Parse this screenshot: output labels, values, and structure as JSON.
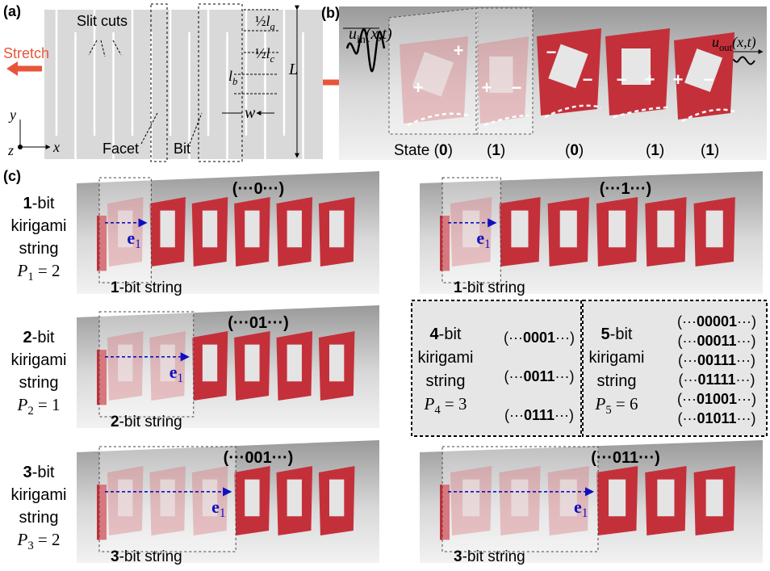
{
  "panel_a": {
    "label": "(a)",
    "slit_cuts": "Slit cuts",
    "stretch": "Stretch",
    "facet": "Facet",
    "bit": "Bit",
    "half_la": [
      "½",
      "l",
      "a"
    ],
    "half_lc": [
      "½",
      "l",
      "c"
    ],
    "lb": [
      "l",
      "b"
    ],
    "L": "L",
    "w": "w",
    "axis_y": "y",
    "axis_z": "z",
    "axis_x": "x"
  },
  "panel_b": {
    "label": "(b)",
    "u_in": [
      "u",
      "in",
      "(x,t)"
    ],
    "u_out": [
      "u",
      "out",
      "(x,t)"
    ],
    "states": [
      [
        "State (",
        "0",
        ")"
      ],
      [
        "(",
        "1",
        ")"
      ],
      [
        "(",
        "0",
        ")"
      ],
      [
        "(",
        "1",
        ")"
      ],
      [
        "(",
        "1",
        ")"
      ]
    ],
    "signs": [
      "+",
      "+",
      "+",
      "−",
      "−",
      "−",
      "−",
      "+",
      "+",
      "−"
    ]
  },
  "panel_c": {
    "label": "(c)",
    "rows": [
      {
        "title": [
          "1",
          "-bit"
        ],
        "line2": "kirigami",
        "line3": "string",
        "p": [
          "P",
          "1",
          " = 2"
        ],
        "photos": [
          {
            "code": [
              "(···",
              "0",
              "···)"
            ],
            "vec": [
              "e",
              "1"
            ],
            "caption": [
              "1",
              "-bit string"
            ]
          },
          {
            "code": [
              "(···",
              "1",
              "···)"
            ],
            "vec": [
              "e",
              "1"
            ],
            "caption": [
              "1",
              "-bit string"
            ]
          }
        ]
      },
      {
        "title": [
          "2",
          "-bit"
        ],
        "line2": "kirigami",
        "line3": "string",
        "p": [
          "P",
          "2",
          " = 1"
        ],
        "photos": [
          {
            "code": [
              "(···",
              "01",
              "···)"
            ],
            "vec": [
              "e",
              "1"
            ],
            "caption": [
              "2",
              "-bit string"
            ]
          }
        ]
      },
      {
        "title": [
          "3",
          "-bit"
        ],
        "line2": "kirigami",
        "line3": "string",
        "p": [
          "P",
          "3",
          " = 2"
        ],
        "photos": [
          {
            "code": [
              "(···",
              "001",
              "···)"
            ],
            "vec": [
              "e",
              "1"
            ],
            "caption": [
              "3",
              "-bit string"
            ]
          },
          {
            "code": [
              "(···",
              "011",
              "···)"
            ],
            "vec": [
              "e",
              "1"
            ],
            "caption": [
              "3",
              "-bit string"
            ]
          }
        ]
      }
    ],
    "boxes": [
      {
        "title": [
          "4",
          "-bit"
        ],
        "line2": "kirigami",
        "line3": "string",
        "p": [
          "P",
          "4",
          " = 3"
        ],
        "codes": [
          [
            "(···",
            "0001",
            "···)"
          ],
          [
            "(···",
            "0011",
            "···)"
          ],
          [
            "(···",
            "0111",
            "···)"
          ]
        ]
      },
      {
        "title": [
          "5",
          "-bit"
        ],
        "line2": "kirigami",
        "line3": "string",
        "p": [
          "P",
          "5",
          " = 6"
        ],
        "codes": [
          [
            "(···",
            "00001",
            "···)"
          ],
          [
            "(···",
            "00011",
            "···)"
          ],
          [
            "(···",
            "00111",
            "···)"
          ],
          [
            "(···",
            "01111",
            "···)"
          ],
          [
            "(···",
            "01001",
            "···)"
          ],
          [
            "(···",
            "01011",
            "···)"
          ]
        ]
      }
    ]
  }
}
